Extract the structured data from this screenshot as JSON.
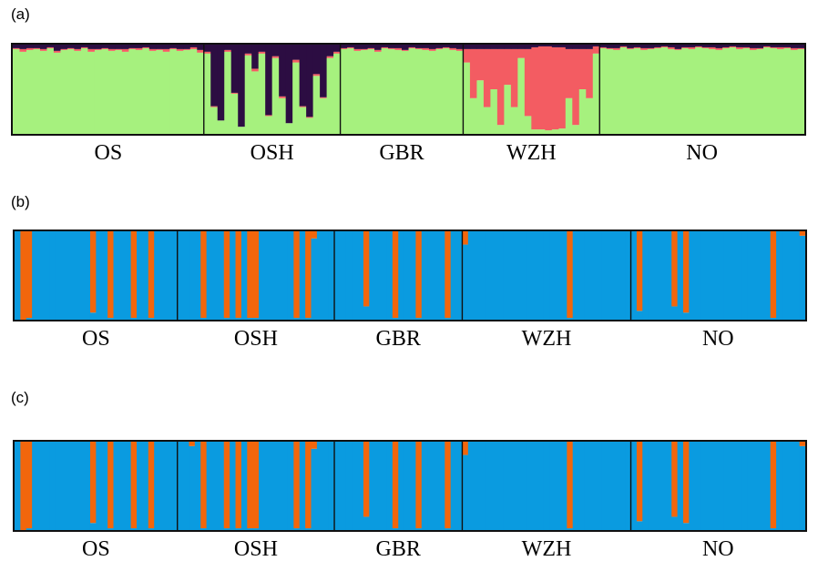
{
  "colors": {
    "a": [
      "#a6f17e",
      "#f35c62",
      "#2c0d42"
    ],
    "bc": [
      "#0a9be0",
      "#f2660c"
    ],
    "divider": "#101010"
  },
  "chart_data": [
    {
      "panel": "(a)",
      "type": "stacked-bar",
      "k": 3,
      "populations": [
        "OS",
        "OSH",
        "GBR",
        "WZH",
        "NO"
      ],
      "individuals": [
        28,
        20,
        18,
        20,
        30
      ],
      "ylim": [
        0,
        1
      ],
      "series": [
        {
          "values": [
            [
              0.95,
              0.92,
              0.94,
              0.95,
              0.93,
              0.96,
              0.91,
              0.94,
              0.95,
              0.93,
              0.96,
              0.92,
              0.94,
              0.95,
              0.93,
              0.94,
              0.92,
              0.95,
              0.94,
              0.96,
              0.93,
              0.94,
              0.92,
              0.95,
              0.93,
              0.94,
              0.95,
              0.91
            ],
            [
              0.9,
              0.3,
              0.15,
              0.92,
              0.45,
              0.08,
              0.88,
              0.7,
              0.9,
              0.2,
              0.85,
              0.4,
              0.12,
              0.8,
              0.3,
              0.18,
              0.65,
              0.4,
              0.85,
              0.9
            ],
            [
              0.95,
              0.96,
              0.93,
              0.94,
              0.95,
              0.92,
              0.96,
              0.95,
              0.94,
              0.93,
              0.96,
              0.95,
              0.94,
              0.93,
              0.95,
              0.96,
              0.94,
              0.93
            ],
            [
              0.8,
              0.4,
              0.6,
              0.3,
              0.5,
              0.1,
              0.55,
              0.3,
              0.85,
              0.2,
              0.05,
              0.05,
              0.04,
              0.05,
              0.06,
              0.4,
              0.1,
              0.5,
              0.4,
              0.9
            ],
            [
              0.96,
              0.95,
              0.94,
              0.97,
              0.95,
              0.96,
              0.94,
              0.95,
              0.96,
              0.97,
              0.95,
              0.94,
              0.96,
              0.95,
              0.97,
              0.96,
              0.95,
              0.94,
              0.96,
              0.97,
              0.95,
              0.96,
              0.94,
              0.95,
              0.97,
              0.96,
              0.95,
              0.96,
              0.94,
              0.95
            ]
          ]
        },
        {
          "values": [
            [
              0.01,
              0.03,
              0.02,
              0.01,
              0.02,
              0.01,
              0.02,
              0.01,
              0.01,
              0.02,
              0.01,
              0.03,
              0.01,
              0.01,
              0.02,
              0.01,
              0.03,
              0.01,
              0.02,
              0.01,
              0.02,
              0.01,
              0.03,
              0.01,
              0.02,
              0.01,
              0.02,
              0.03
            ],
            [
              0.02,
              0.01,
              0.0,
              0.02,
              0.01,
              0.0,
              0.02,
              0.03,
              0.02,
              0.01,
              0.02,
              0.02,
              0.0,
              0.03,
              0.01,
              0.01,
              0.02,
              0.01,
              0.02,
              0.02
            ],
            [
              0.01,
              0.01,
              0.02,
              0.01,
              0.01,
              0.02,
              0.01,
              0.01,
              0.02,
              0.01,
              0.01,
              0.01,
              0.02,
              0.02,
              0.01,
              0.01,
              0.02,
              0.02
            ],
            [
              0.15,
              0.55,
              0.35,
              0.65,
              0.45,
              0.85,
              0.4,
              0.65,
              0.1,
              0.75,
              0.92,
              0.93,
              0.94,
              0.92,
              0.91,
              0.55,
              0.85,
              0.45,
              0.55,
              0.08
            ],
            [
              0.01,
              0.01,
              0.02,
              0.01,
              0.01,
              0.01,
              0.02,
              0.01,
              0.01,
              0.01,
              0.02,
              0.01,
              0.01,
              0.02,
              0.01,
              0.01,
              0.02,
              0.02,
              0.01,
              0.01,
              0.02,
              0.01,
              0.02,
              0.01,
              0.01,
              0.01,
              0.02,
              0.01,
              0.02,
              0.01
            ]
          ]
        }
      ]
    },
    {
      "panel": "(b)",
      "type": "stacked-bar",
      "k": 2,
      "populations": [
        "OS",
        "OSH",
        "GBR",
        "WZH",
        "NO"
      ],
      "individuals": [
        28,
        27,
        22,
        29,
        30
      ],
      "ylim": [
        0,
        1
      ],
      "series": [
        {
          "values": [
            [
              1,
              0,
              0.02,
              1,
              1,
              1,
              1,
              1,
              1,
              1,
              1,
              1,
              1,
              0.08,
              1,
              1,
              0.02,
              1,
              1,
              1,
              0.02,
              1,
              1,
              0.02,
              1,
              1,
              1,
              1
            ],
            [
              1,
              1,
              1,
              1,
              0.02,
              1,
              1,
              1,
              0.02,
              1,
              0.02,
              1,
              0.02,
              0.02,
              1,
              1,
              1,
              1,
              1,
              1,
              0.02,
              1,
              0.02,
              0.92,
              1,
              1,
              1
            ],
            [
              1,
              1,
              1,
              1,
              1,
              0.15,
              1,
              1,
              1,
              1,
              0.02,
              1,
              1,
              1,
              0.02,
              1,
              1,
              1,
              1,
              0.02,
              1,
              1
            ],
            [
              0.85,
              1,
              1,
              1,
              1,
              1,
              1,
              1,
              1,
              1,
              1,
              1,
              1,
              1,
              1,
              1,
              1,
              1,
              0.02,
              1,
              1,
              1,
              1,
              1,
              1,
              1,
              1,
              1,
              1
            ],
            [
              1,
              0.1,
              1,
              1,
              1,
              1,
              1,
              0.15,
              1,
              0.08,
              1,
              1,
              1,
              1,
              1,
              1,
              1,
              1,
              1,
              1,
              1,
              1,
              1,
              1,
              0.02,
              1,
              1,
              1,
              1,
              0.95
            ]
          ]
        }
      ]
    },
    {
      "panel": "(c)",
      "type": "stacked-bar",
      "k": 2,
      "populations": [
        "OS",
        "OSH",
        "GBR",
        "WZH",
        "NO"
      ],
      "individuals": [
        28,
        27,
        22,
        29,
        30
      ],
      "ylim": [
        0,
        1
      ],
      "series": [
        {
          "values": [
            [
              1,
              0,
              0.02,
              1,
              1,
              1,
              1,
              1,
              1,
              1,
              1,
              1,
              1,
              0.08,
              1,
              1,
              0.02,
              1,
              1,
              1,
              0.02,
              1,
              1,
              0.02,
              1,
              1,
              1,
              1
            ],
            [
              1,
              1,
              0.95,
              1,
              0.02,
              1,
              1,
              1,
              0.02,
              1,
              0.02,
              1,
              0.02,
              0.02,
              1,
              1,
              1,
              1,
              1,
              1,
              0.02,
              1,
              0.02,
              0.92,
              1,
              1,
              1
            ],
            [
              1,
              1,
              1,
              1,
              1,
              0.15,
              1,
              1,
              1,
              1,
              0.02,
              1,
              1,
              1,
              0.02,
              1,
              1,
              1,
              1,
              0.02,
              1,
              1
            ],
            [
              0.85,
              1,
              1,
              1,
              1,
              1,
              1,
              1,
              1,
              1,
              1,
              1,
              1,
              1,
              1,
              1,
              1,
              1,
              0.02,
              1,
              1,
              1,
              1,
              1,
              1,
              1,
              1,
              1,
              1
            ],
            [
              1,
              0.1,
              1,
              1,
              1,
              1,
              1,
              0.15,
              1,
              0.08,
              1,
              1,
              1,
              1,
              1,
              1,
              1,
              1,
              1,
              1,
              1,
              1,
              1,
              1,
              0.02,
              1,
              1,
              1,
              1,
              0.95
            ]
          ]
        }
      ]
    }
  ]
}
